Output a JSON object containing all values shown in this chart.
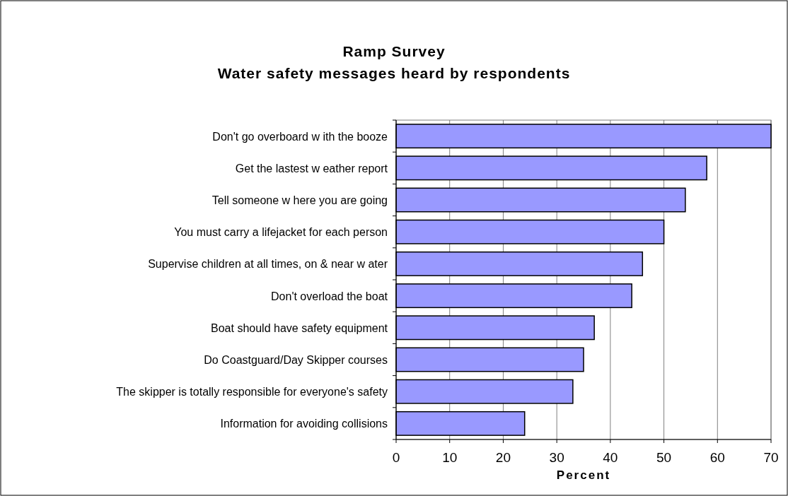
{
  "chart_data": {
    "type": "bar",
    "orientation": "horizontal",
    "title": "Ramp Survey",
    "subtitle": "Water safety messages heard by respondents",
    "xlabel": "Percent",
    "categories": [
      "Don't go overboard w ith the booze",
      "Get the lastest w eather report",
      "Tell someone w here you are going",
      "You must carry a lifejacket for each person",
      "Supervise children at all times, on & near w ater",
      "Don't overload the boat",
      "Boat should have safety equipment",
      "Do Coastguard/Day Skipper courses",
      "The skipper is totally responsible for everyone's safety",
      "Information for avoiding collisions"
    ],
    "values": [
      70,
      58,
      54,
      50,
      46,
      44,
      37,
      35,
      33,
      24
    ],
    "color": "#9999ff",
    "xlim": [
      0,
      70
    ],
    "xticks": [
      0,
      10,
      20,
      30,
      40,
      50,
      60,
      70
    ],
    "grid": "x"
  }
}
